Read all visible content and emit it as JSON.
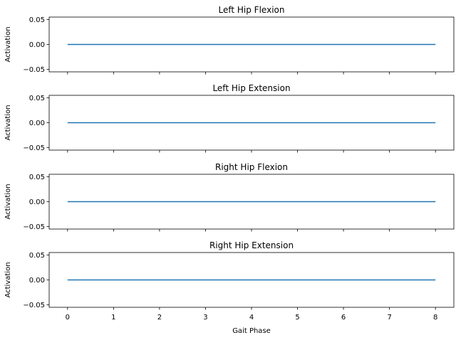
{
  "chart_data": [
    {
      "type": "line",
      "title": "Left Hip Flexion",
      "xlabel": "",
      "ylabel": "Activation",
      "x": [
        0,
        1,
        2,
        3,
        4,
        5,
        6,
        7,
        8
      ],
      "series": [
        {
          "values": [
            0,
            0,
            0,
            0,
            0,
            0,
            0,
            0,
            0
          ],
          "color": "#1f77b4"
        }
      ],
      "xlim": [
        -0.4,
        8.4
      ],
      "ylim": [
        -0.055,
        0.055
      ],
      "yticks": [
        -0.05,
        0.0,
        0.05
      ],
      "yticklabels": [
        "−0.05",
        "0.00",
        "0.05"
      ],
      "xticks": [
        0,
        1,
        2,
        3,
        4,
        5,
        6,
        7,
        8
      ],
      "xticklabels": [],
      "grid": false
    },
    {
      "type": "line",
      "title": "Left Hip Extension",
      "xlabel": "",
      "ylabel": "Activation",
      "x": [
        0,
        1,
        2,
        3,
        4,
        5,
        6,
        7,
        8
      ],
      "series": [
        {
          "values": [
            0,
            0,
            0,
            0,
            0,
            0,
            0,
            0,
            0
          ],
          "color": "#1f77b4"
        }
      ],
      "xlim": [
        -0.4,
        8.4
      ],
      "ylim": [
        -0.055,
        0.055
      ],
      "yticks": [
        -0.05,
        0.0,
        0.05
      ],
      "yticklabels": [
        "−0.05",
        "0.00",
        "0.05"
      ],
      "xticks": [
        0,
        1,
        2,
        3,
        4,
        5,
        6,
        7,
        8
      ],
      "xticklabels": [],
      "grid": false
    },
    {
      "type": "line",
      "title": "Right Hip Flexion",
      "xlabel": "",
      "ylabel": "Activation",
      "x": [
        0,
        1,
        2,
        3,
        4,
        5,
        6,
        7,
        8
      ],
      "series": [
        {
          "values": [
            0,
            0,
            0,
            0,
            0,
            0,
            0,
            0,
            0
          ],
          "color": "#1f77b4"
        }
      ],
      "xlim": [
        -0.4,
        8.4
      ],
      "ylim": [
        -0.055,
        0.055
      ],
      "yticks": [
        -0.05,
        0.0,
        0.05
      ],
      "yticklabels": [
        "−0.05",
        "0.00",
        "0.05"
      ],
      "xticks": [
        0,
        1,
        2,
        3,
        4,
        5,
        6,
        7,
        8
      ],
      "xticklabels": [],
      "grid": false
    },
    {
      "type": "line",
      "title": "Right Hip Extension",
      "xlabel": "Gait Phase",
      "ylabel": "Activation",
      "x": [
        0,
        1,
        2,
        3,
        4,
        5,
        6,
        7,
        8
      ],
      "series": [
        {
          "values": [
            0,
            0,
            0,
            0,
            0,
            0,
            0,
            0,
            0
          ],
          "color": "#1f77b4"
        }
      ],
      "xlim": [
        -0.4,
        8.4
      ],
      "ylim": [
        -0.055,
        0.055
      ],
      "yticks": [
        -0.05,
        0.0,
        0.05
      ],
      "yticklabels": [
        "−0.05",
        "0.00",
        "0.05"
      ],
      "xticks": [
        0,
        1,
        2,
        3,
        4,
        5,
        6,
        7,
        8
      ],
      "xticklabels": [
        "0",
        "1",
        "2",
        "3",
        "4",
        "5",
        "6",
        "7",
        "8"
      ],
      "grid": false
    }
  ]
}
